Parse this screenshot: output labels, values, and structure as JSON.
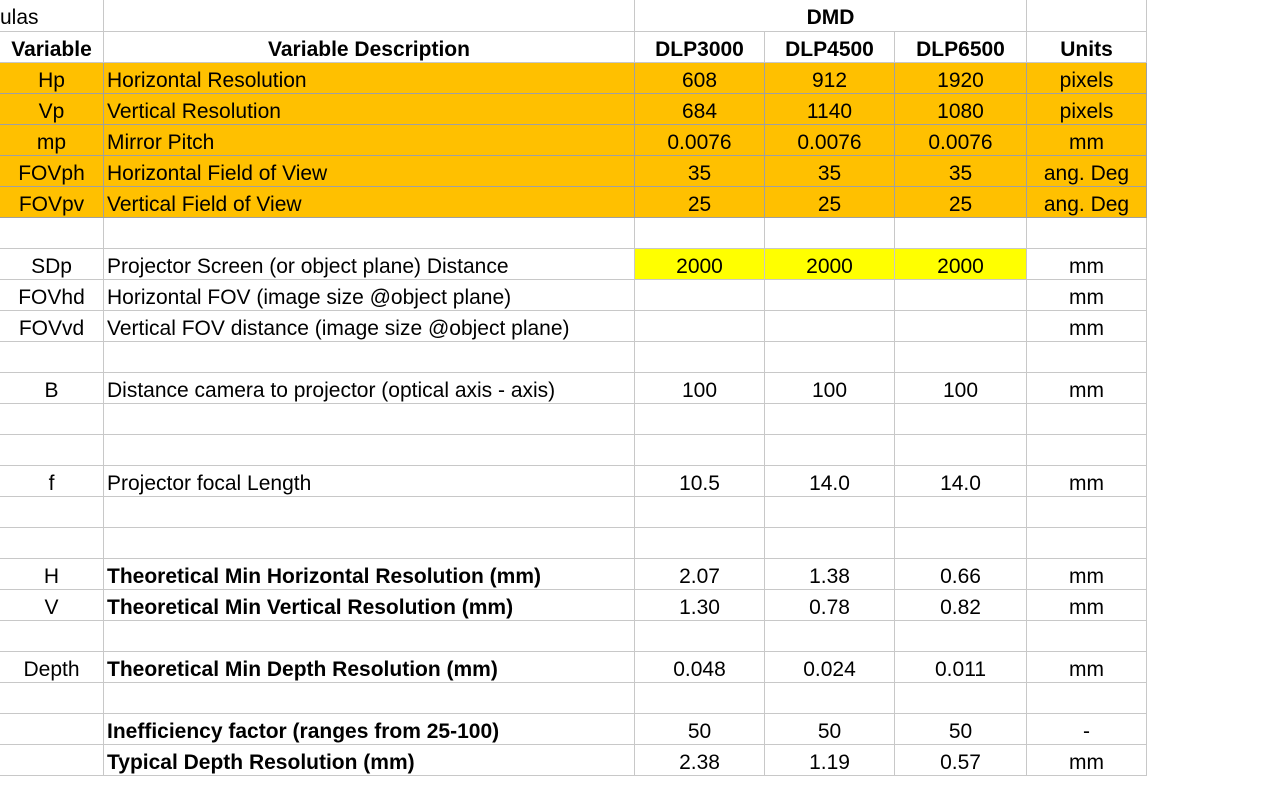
{
  "corner_label": "ulas",
  "group_header": "DMD",
  "headers": {
    "variable": "Variable",
    "description": "Variable Description",
    "dlp3000": "DLP3000",
    "dlp4500": "DLP4500",
    "dlp6500": "DLP6500",
    "units": "Units"
  },
  "rows": [
    {
      "var": "Hp",
      "desc": "Horizontal Resolution",
      "v1": "608",
      "v2": "912",
      "v3": "1920",
      "unit": "pixels"
    },
    {
      "var": "Vp",
      "desc": "Vertical Resolution",
      "v1": "684",
      "v2": "1140",
      "v3": "1080",
      "unit": "pixels"
    },
    {
      "var": "mp",
      "desc": "Mirror Pitch",
      "v1": "0.0076",
      "v2": "0.0076",
      "v3": "0.0076",
      "unit": "mm"
    },
    {
      "var": "FOVph",
      "desc": "Horizontal Field of View",
      "v1": "35",
      "v2": "35",
      "v3": "35",
      "unit": "ang. Deg"
    },
    {
      "var": "FOVpv",
      "desc": "Vertical Field of View",
      "v1": "25",
      "v2": "25",
      "v3": "25",
      "unit": "ang. Deg"
    },
    {
      "var": "",
      "desc": "",
      "v1": "",
      "v2": "",
      "v3": "",
      "unit": ""
    },
    {
      "var": "SDp",
      "desc": "Projector Screen (or object plane) Distance",
      "v1": "2000",
      "v2": "2000",
      "v3": "2000",
      "unit": "mm"
    },
    {
      "var": "FOVhd",
      "desc": "Horizontal FOV (image size @object plane)",
      "v1": "",
      "v2": "",
      "v3": "",
      "unit": "mm"
    },
    {
      "var": "FOVvd",
      "desc": "Vertical FOV distance (image size @object plane)",
      "v1": "",
      "v2": "",
      "v3": "",
      "unit": "mm"
    },
    {
      "var": "",
      "desc": "",
      "v1": "",
      "v2": "",
      "v3": "",
      "unit": ""
    },
    {
      "var": "B",
      "desc": "Distance camera to projector (optical axis - axis)",
      "v1": "100",
      "v2": "100",
      "v3": "100",
      "unit": "mm"
    },
    {
      "var": "",
      "desc": "",
      "v1": "",
      "v2": "",
      "v3": "",
      "unit": ""
    },
    {
      "var": "",
      "desc": "",
      "v1": "",
      "v2": "",
      "v3": "",
      "unit": ""
    },
    {
      "var": "f",
      "desc": "Projector focal Length",
      "v1": "10.5",
      "v2": "14.0",
      "v3": "14.0",
      "unit": "mm"
    },
    {
      "var": "",
      "desc": "",
      "v1": "",
      "v2": "",
      "v3": "",
      "unit": ""
    },
    {
      "var": "",
      "desc": "",
      "v1": "",
      "v2": "",
      "v3": "",
      "unit": ""
    },
    {
      "var": "H",
      "desc": "Theoretical Min Horizontal Resolution (mm)",
      "v1": "2.07",
      "v2": "1.38",
      "v3": "0.66",
      "unit": "mm"
    },
    {
      "var": "V",
      "desc": "Theoretical Min Vertical Resolution (mm)",
      "v1": "1.30",
      "v2": "0.78",
      "v3": "0.82",
      "unit": "mm"
    },
    {
      "var": "",
      "desc": "",
      "v1": "",
      "v2": "",
      "v3": "",
      "unit": ""
    },
    {
      "var": "Depth",
      "desc": "Theoretical Min Depth Resolution (mm)",
      "v1": "0.048",
      "v2": "0.024",
      "v3": "0.011",
      "unit": "mm"
    },
    {
      "var": "",
      "desc": "",
      "v1": "",
      "v2": "",
      "v3": "",
      "unit": ""
    },
    {
      "var": "",
      "desc": "Inefficiency factor (ranges from 25-100)",
      "v1": "50",
      "v2": "50",
      "v3": "50",
      "unit": "-"
    },
    {
      "var": "",
      "desc": "Typical Depth Resolution (mm)",
      "v1": "2.38",
      "v2": "1.19",
      "v3": "0.57",
      "unit": "mm"
    }
  ],
  "colors": {
    "input_orange": "#ffc000",
    "input_yellow": "#ffff00",
    "gridline": "#c8c8c8"
  }
}
